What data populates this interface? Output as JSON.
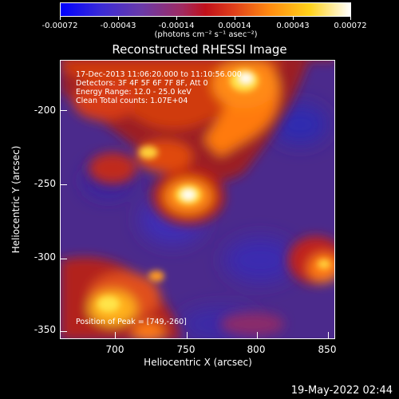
{
  "colorbar": {
    "ticks": [
      "-0.00072",
      "-0.00043",
      "-0.00014",
      "0.00014",
      "0.00043",
      "0.00072"
    ],
    "units": "(photons cm⁻² s⁻¹ asec⁻²)"
  },
  "title": "Reconstructed RHESSI Image",
  "info": {
    "time": "17-Dec-2013 11:06:20.000 to 11:10:56.000",
    "detectors": "Detectors: 3F 4F 5F 6F 7F 8F, Att 0",
    "energy": "Energy Range: 12.0 - 25.0 keV",
    "counts": "Clean    Total counts: 1.07E+04",
    "peak": "Position of Peak = [749,-260]"
  },
  "axes": {
    "xlabel": "Heliocentric X (arcsec)",
    "ylabel": "Heliocentric Y (arcsec)",
    "xticks": [
      "700",
      "750",
      "800",
      "850"
    ],
    "yticks": [
      "-200",
      "-250",
      "-300",
      "-350"
    ]
  },
  "timestamp": "19-May-2022 02:44",
  "colors": {
    "background": "#000000",
    "text": "#ffffff"
  }
}
